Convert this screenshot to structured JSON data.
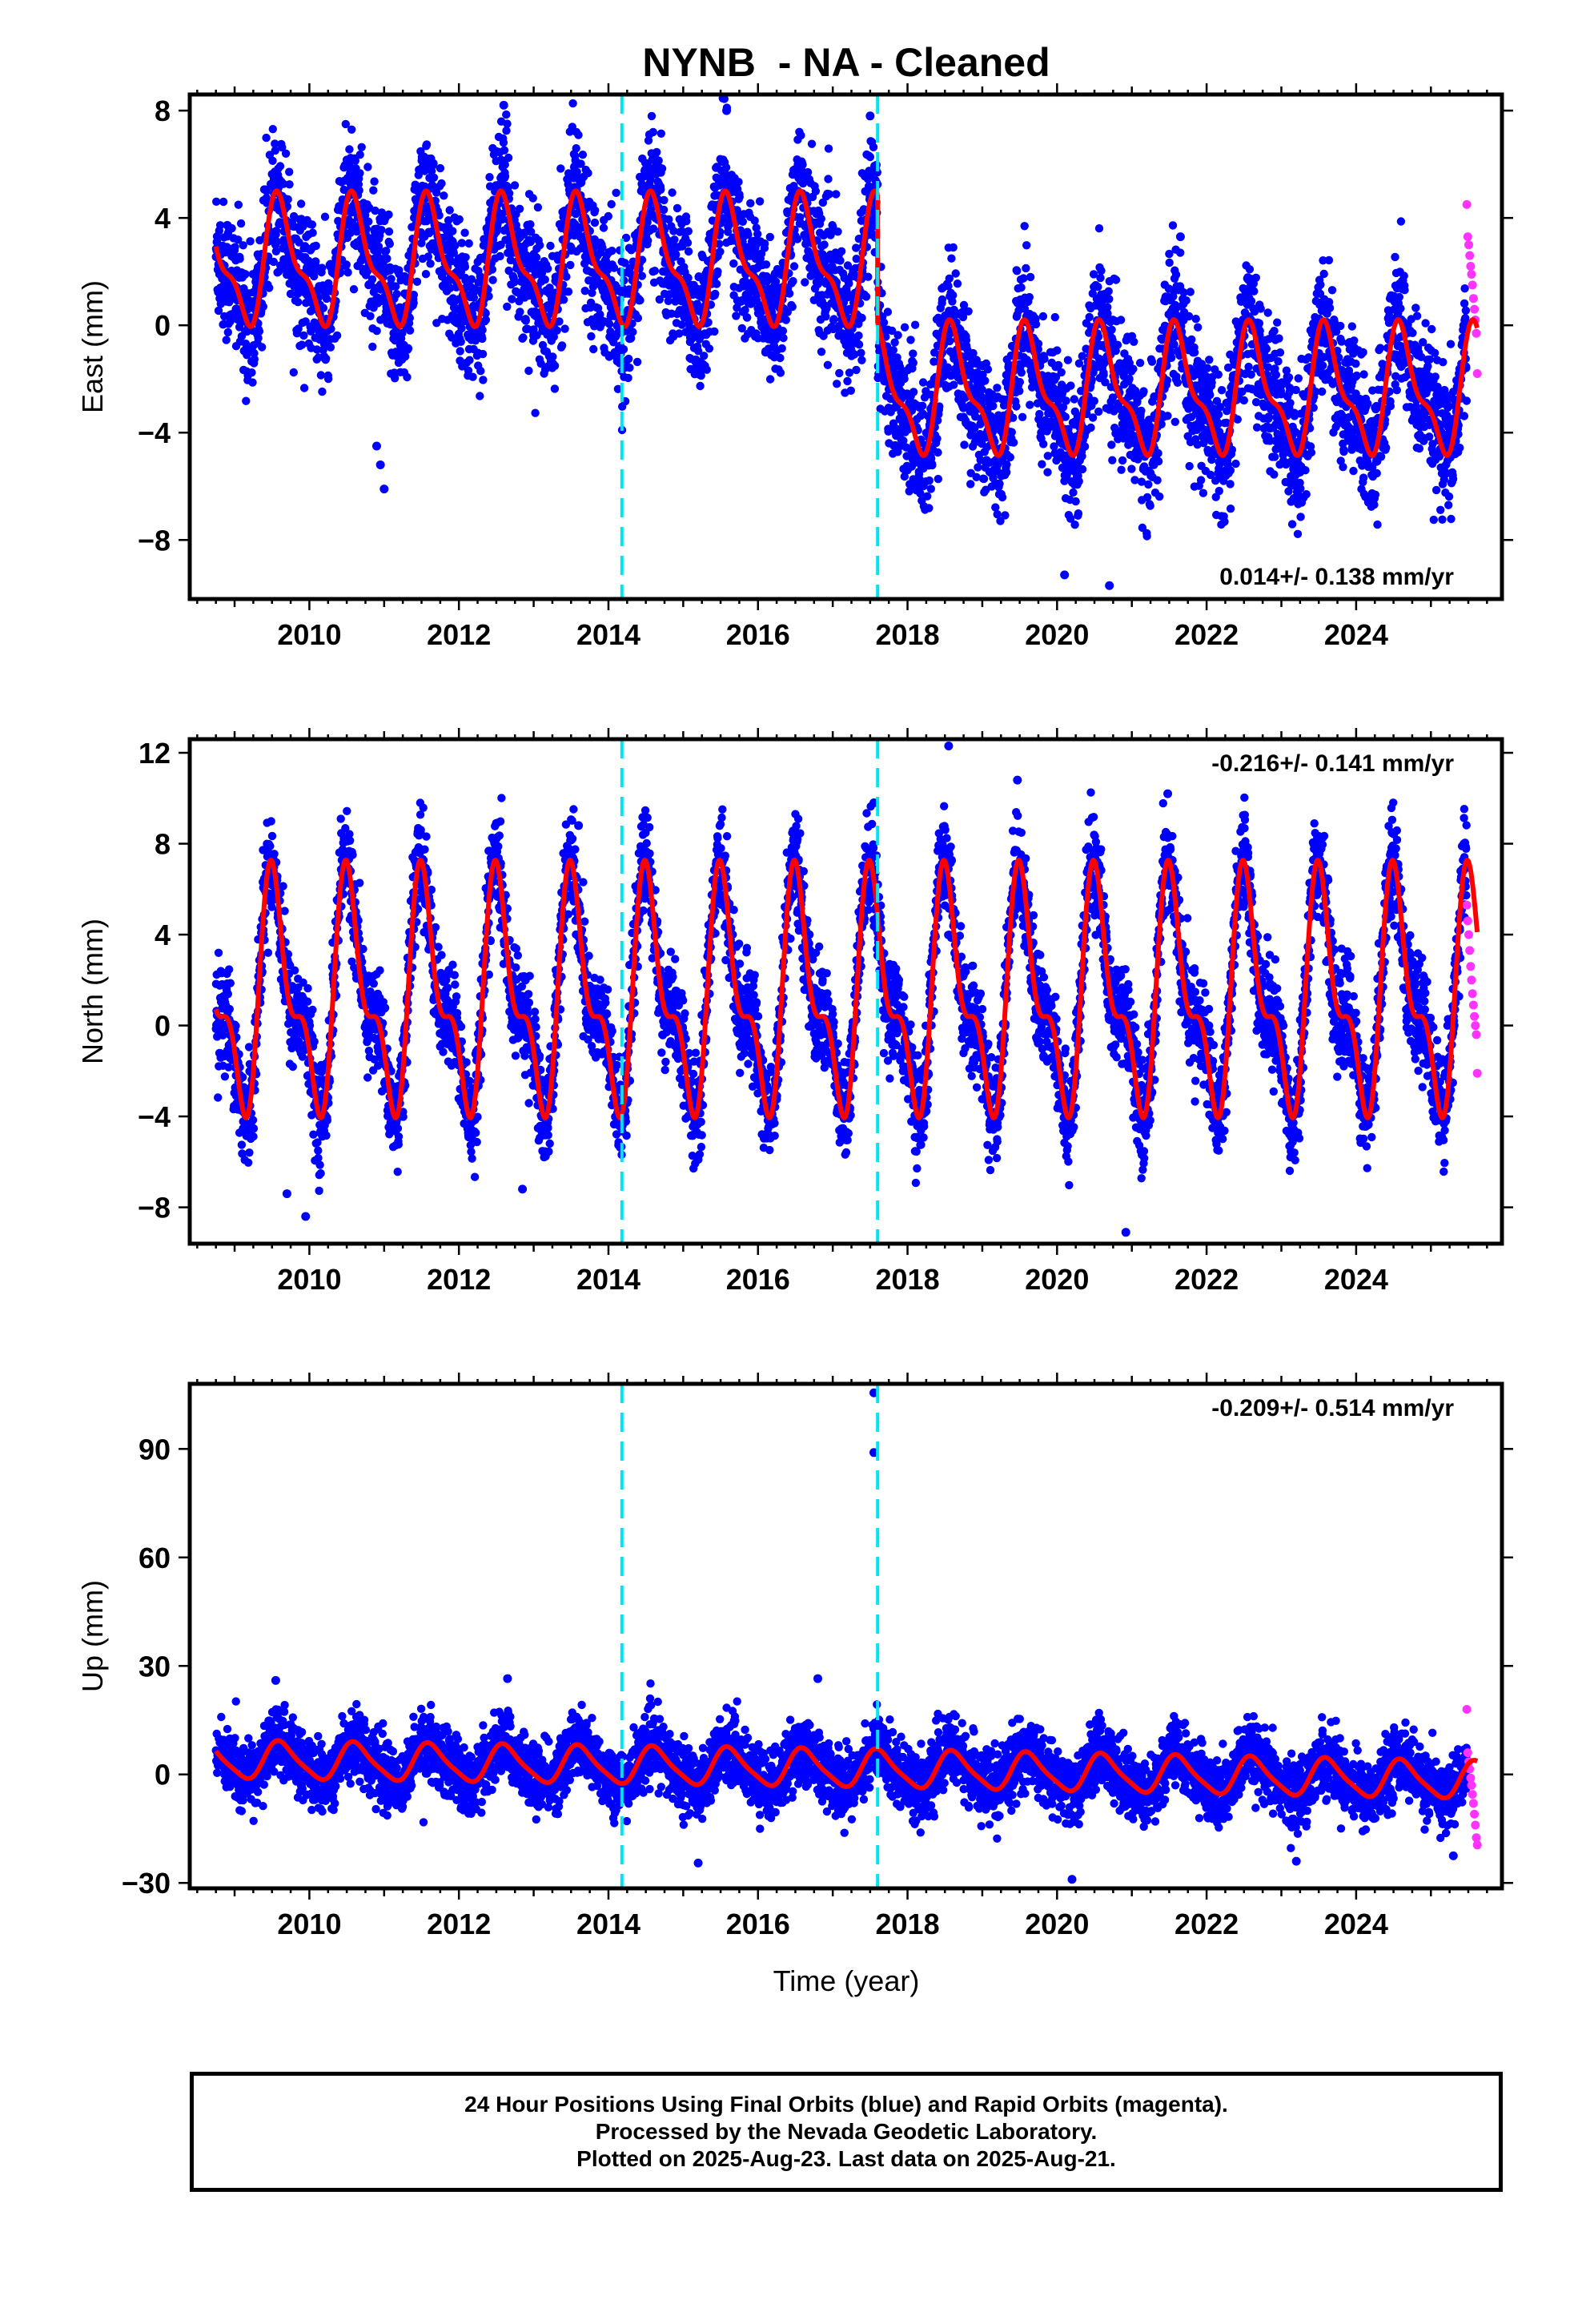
{
  "title": "NYNB  - NA - Cleaned",
  "footer": {
    "line1": "24 Hour Positions Using Final Orbits (blue) and Rapid Orbits (magenta).",
    "line2": "Processed by the Nevada Geodetic Laboratory.",
    "line3": "Plotted on 2025-Aug-23. Last data on 2025-Aug-21."
  },
  "colors": {
    "final_orbits": "#0000ff",
    "rapid_orbits": "#ff33ff",
    "model_fit": "#ff0000",
    "equipment_change": "#00e5ee",
    "frame": "#000000"
  },
  "chart_data": [
    {
      "type": "scatter",
      "component": "east",
      "ylabel": "East (mm)",
      "xlabel": "",
      "xlim": [
        2008.4,
        2025.95
      ],
      "ylim": [
        -10.2,
        8.6
      ],
      "xticks": [
        2010,
        2012,
        2014,
        2016,
        2018,
        2020,
        2022,
        2024
      ],
      "yticks": [
        -8,
        -4,
        0,
        4,
        8
      ],
      "tick_labels": [
        "−8",
        "−4",
        "0",
        "4",
        "8"
      ],
      "velocity_label": "0.014+/- 0.138 mm/yr",
      "velocity_position": "bottom-right",
      "offsets": [
        2014.18,
        2017.6
      ],
      "data_start": 2008.75,
      "data_end": 2025.62,
      "rapid_start": 2025.48,
      "model": {
        "segments": [
          {
            "start": 2008.75,
            "end": 2017.6,
            "level": 2.3
          },
          {
            "start": 2017.6,
            "end": 2025.62,
            "level": -2.5
          }
        ],
        "amplitude": 2.1,
        "peak_phase": 0.62,
        "semiannual": 0.4
      },
      "scatter_sd": 1.25,
      "outliers": [
        {
          "x": 2010.9,
          "y": -4.5
        },
        {
          "x": 2010.95,
          "y": -5.2
        },
        {
          "x": 2011.0,
          "y": -6.1
        },
        {
          "x": 2020.1,
          "y": -9.3
        },
        {
          "x": 2020.7,
          "y": -9.7
        },
        {
          "x": 2012.6,
          "y": 8.2
        },
        {
          "x": 2015.58,
          "y": 8.0
        },
        {
          "x": 2017.5,
          "y": 7.8
        },
        {
          "x": 2021.65,
          "y": 3.3
        }
      ],
      "rapid_values": [
        4.5,
        3.3,
        3.0,
        2.6,
        2.2,
        1.9,
        1.5,
        1.0,
        0.6,
        0.2,
        -0.3,
        -1.8
      ]
    },
    {
      "type": "scatter",
      "component": "north",
      "ylabel": "North (mm)",
      "xlabel": "",
      "xlim": [
        2008.4,
        2025.95
      ],
      "ylim": [
        -9.6,
        12.6
      ],
      "xticks": [
        2010,
        2012,
        2014,
        2016,
        2018,
        2020,
        2022,
        2024
      ],
      "yticks": [
        -8,
        -4,
        0,
        4,
        8,
        12
      ],
      "tick_labels": [
        "−8",
        "−4",
        "0",
        "4",
        "8",
        "12"
      ],
      "velocity_label": "-0.216+/- 0.141 mm/yr",
      "velocity_position": "top-right",
      "offsets": [
        2014.18,
        2017.6
      ],
      "data_start": 2008.75,
      "data_end": 2025.62,
      "rapid_start": 2025.48,
      "model": {
        "segments": [
          {
            "start": 2008.75,
            "end": 2025.62,
            "level": 1.2
          }
        ],
        "amplitude": 4.4,
        "peak_phase": 0.55,
        "semiannual": 0.5
      },
      "scatter_sd": 1.1,
      "outliers": [
        {
          "x": 2009.95,
          "y": -8.4
        },
        {
          "x": 2009.7,
          "y": -7.4
        },
        {
          "x": 2012.85,
          "y": -7.2
        },
        {
          "x": 2020.92,
          "y": -9.1
        },
        {
          "x": 2018.55,
          "y": 12.3
        },
        {
          "x": 2019.47,
          "y": 10.8
        },
        {
          "x": 2017.55,
          "y": 9.8
        },
        {
          "x": 2013.6,
          "y": 8.8
        },
        {
          "x": 2021.48,
          "y": 10.2
        }
      ],
      "rapid_values": [
        5.3,
        4.6,
        4.0,
        3.3,
        2.6,
        2.0,
        1.4,
        0.9,
        0.4,
        0.0,
        -0.4,
        -2.1
      ]
    },
    {
      "type": "scatter",
      "component": "up",
      "ylabel": "Up (mm)",
      "xlabel": "Time (year)",
      "xlim": [
        2008.4,
        2025.95
      ],
      "ylim": [
        -31.5,
        108
      ],
      "xticks": [
        2010,
        2012,
        2014,
        2016,
        2018,
        2020,
        2022,
        2024
      ],
      "yticks": [
        -30,
        0,
        30,
        60,
        90
      ],
      "tick_labels": [
        "−30",
        "0",
        "30",
        "60",
        "90"
      ],
      "velocity_label": "-0.209+/- 0.514 mm/yr",
      "velocity_position": "top-right",
      "offsets": [
        2014.18,
        2017.6
      ],
      "data_start": 2008.75,
      "data_end": 2025.62,
      "rapid_start": 2025.48,
      "model": {
        "segments": [
          {
            "start": 2008.75,
            "end": 2017.6,
            "level": 4.0,
            "trend": -0.28
          },
          {
            "start": 2017.6,
            "end": 2025.62,
            "level": 1.5,
            "trend": -0.4
          }
        ],
        "amplitude": 5.0,
        "peak_phase": 0.62,
        "semiannual": 0.2
      },
      "scatter_sd": 4.5,
      "outliers": [
        {
          "x": 2017.55,
          "y": 105.5
        },
        {
          "x": 2017.55,
          "y": 89.0
        },
        {
          "x": 2009.55,
          "y": 26.0
        },
        {
          "x": 2012.65,
          "y": 26.5
        },
        {
          "x": 2016.8,
          "y": 26.5
        },
        {
          "x": 2015.2,
          "y": -24.5
        },
        {
          "x": 2020.2,
          "y": -29.0
        },
        {
          "x": 2023.2,
          "y": -24.0
        },
        {
          "x": 2025.3,
          "y": -22.5
        }
      ],
      "rapid_values": [
        18.0,
        6.0,
        3.5,
        1.5,
        -1.0,
        -3.0,
        -5.5,
        -8.0,
        -11.0,
        -14.0,
        -17.5,
        -19.5
      ]
    }
  ]
}
